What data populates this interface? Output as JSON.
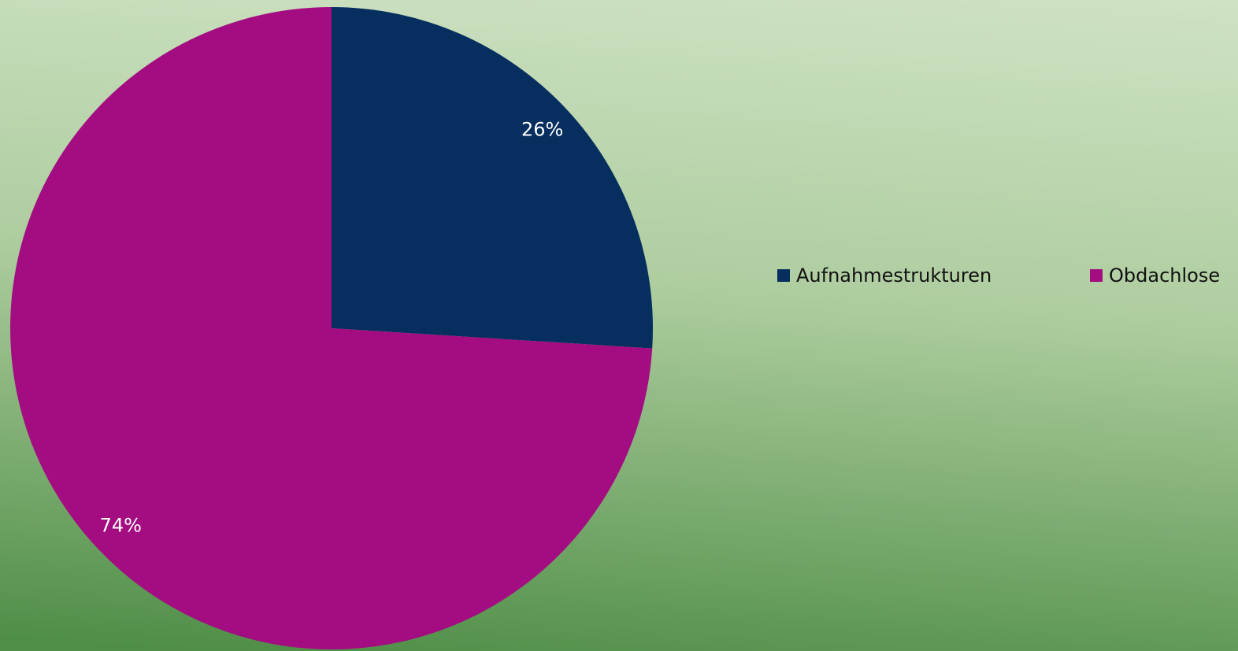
{
  "chart_data": {
    "type": "pie",
    "categories": [
      "Aufnahmestrukturen",
      "Obdachlose"
    ],
    "values": [
      26,
      74
    ],
    "value_labels": [
      "26%",
      "74%"
    ],
    "colors": [
      "#062f5f",
      "#a30d81"
    ],
    "legend": "right"
  }
}
